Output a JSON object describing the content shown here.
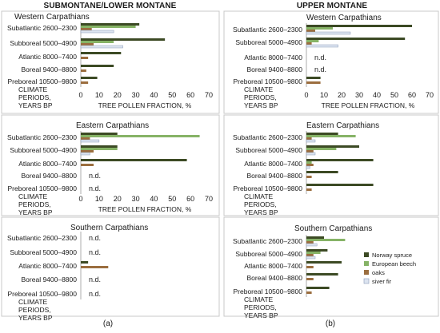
{
  "headings": {
    "left": "SUBMONTANE/LOWER MONTANE",
    "right": "UPPER MONTANE"
  },
  "column_labels": {
    "left": "(a)",
    "right": "(b)"
  },
  "axis_label": "TREE POLLEN FRACTION, %",
  "periods_label": [
    "CLIMATE",
    "PERIODS,",
    "YEARS BP"
  ],
  "nd_label": "n.d.",
  "periods": [
    "Subatlantic 2600–2300",
    "Subboreal 5000–4900",
    "Atlantic 8000–7400",
    "Boreal 9400–8800",
    "Preboreal 10500–9800"
  ],
  "colors": {
    "Norway spruce": "#3c4a24",
    "European beech": "#86b366",
    "oaks": "#9b6e3f",
    "siver fir": "#dce4f0"
  },
  "legend": [
    "Norway spruce",
    "European beech",
    "oaks",
    "siver fir"
  ],
  "chart_data": [
    {
      "type": "bar",
      "orientation": "horizontal",
      "title": "Western Carpathians",
      "column": "left",
      "xlim": [
        0,
        70
      ],
      "xticks": [
        0,
        10,
        20,
        30,
        40,
        50,
        60,
        70
      ],
      "categories": [
        "Subatlantic 2600–2300",
        "Subboreal 5000–4900",
        "Atlantic 8000–7400",
        "Boreal 9400–8800",
        "Preboreal 10500–9800"
      ],
      "series": [
        {
          "name": "Norway spruce",
          "values": [
            32,
            46,
            22,
            18,
            9
          ]
        },
        {
          "name": "European beech",
          "values": [
            30,
            18,
            0,
            0,
            0
          ]
        },
        {
          "name": "oaks",
          "values": [
            6,
            7,
            4,
            3,
            4
          ]
        },
        {
          "name": "siver fir",
          "values": [
            18,
            23,
            0,
            0,
            0
          ]
        }
      ],
      "nd": [
        false,
        false,
        false,
        false,
        false
      ]
    },
    {
      "type": "bar",
      "orientation": "horizontal",
      "title": "Eastern Carpathians",
      "column": "left",
      "xlim": [
        0,
        70
      ],
      "xticks": [
        0,
        10,
        20,
        30,
        40,
        50,
        60,
        70
      ],
      "categories": [
        "Subatlantic 2600–2300",
        "Subboreal 5000–4900",
        "Atlantic 8000–7400",
        "Boreal 9400–8800",
        "Preboreal 10500–9800"
      ],
      "series": [
        {
          "name": "Norway spruce",
          "values": [
            20,
            20,
            58,
            null,
            null
          ]
        },
        {
          "name": "European beech",
          "values": [
            65,
            20,
            0,
            null,
            null
          ]
        },
        {
          "name": "oaks",
          "values": [
            5,
            7,
            7,
            null,
            null
          ]
        },
        {
          "name": "siver fir",
          "values": [
            10,
            5,
            0,
            null,
            null
          ]
        }
      ],
      "nd": [
        false,
        false,
        false,
        true,
        true
      ]
    },
    {
      "type": "bar",
      "orientation": "horizontal",
      "title": "Southern Carpathians",
      "column": "left",
      "xlim": [
        0,
        70
      ],
      "xticks": [],
      "categories": [
        "Subatlantic 2600–2300",
        "Subboreal 5000–4900",
        "Atlantic 8000–7400",
        "Boreal 9400–8800",
        "Preboreal 10500–9800"
      ],
      "series": [
        {
          "name": "Norway spruce",
          "values": [
            null,
            null,
            4,
            null,
            null
          ]
        },
        {
          "name": "European beech",
          "values": [
            null,
            null,
            0,
            null,
            null
          ]
        },
        {
          "name": "oaks",
          "values": [
            null,
            null,
            15,
            null,
            null
          ]
        },
        {
          "name": "siver fir",
          "values": [
            null,
            null,
            0,
            null,
            null
          ]
        }
      ],
      "nd": [
        true,
        true,
        false,
        true,
        true
      ]
    },
    {
      "type": "bar",
      "orientation": "horizontal",
      "title": "Western Carpathians",
      "column": "right",
      "xlim": [
        0,
        70
      ],
      "xticks": [
        0,
        10,
        20,
        30,
        40,
        50,
        60,
        70
      ],
      "categories": [
        "Subatlantic 2600–2300",
        "Subboreal 5000–4900",
        "Atlantic 8000–7400",
        "Boreal 9400–8800",
        "Preboreal 10500–9800"
      ],
      "series": [
        {
          "name": "Norway spruce",
          "values": [
            60,
            56,
            null,
            null,
            8
          ]
        },
        {
          "name": "European beech",
          "values": [
            15,
            7,
            null,
            null,
            0
          ]
        },
        {
          "name": "oaks",
          "values": [
            5,
            3,
            null,
            null,
            8
          ]
        },
        {
          "name": "siver fir",
          "values": [
            25,
            18,
            null,
            null,
            0
          ]
        }
      ],
      "nd": [
        false,
        false,
        true,
        true,
        false
      ]
    },
    {
      "type": "bar",
      "orientation": "horizontal",
      "title": "Eastern Carpathians",
      "column": "right",
      "xlim": [
        0,
        70
      ],
      "xticks": [],
      "categories": [
        "Subatlantic 2600–2300",
        "Subboreal 5000–4900",
        "Atlantic 8000–7400",
        "Boreal 9400–8800",
        "Preboreal 10500–9800"
      ],
      "series": [
        {
          "name": "Norway spruce",
          "values": [
            18,
            30,
            38,
            18,
            38
          ]
        },
        {
          "name": "European beech",
          "values": [
            28,
            17,
            3,
            0,
            0
          ]
        },
        {
          "name": "oaks",
          "values": [
            3,
            4,
            4,
            3,
            3
          ]
        },
        {
          "name": "siver fir",
          "values": [
            5,
            5,
            2,
            0,
            0
          ]
        }
      ],
      "nd": [
        false,
        false,
        false,
        false,
        false
      ]
    },
    {
      "type": "bar",
      "orientation": "horizontal",
      "title": "Southern Carpathians",
      "column": "right",
      "xlim": [
        0,
        70
      ],
      "xticks": [],
      "categories": [
        "Subatlantic 2600–2300",
        "Subboreal 5000–4900",
        "Atlantic 8000–7400",
        "Boreal 9400–8800",
        "Preboreal 10500–9800"
      ],
      "series": [
        {
          "name": "Norway spruce",
          "values": [
            10,
            12,
            20,
            18,
            13
          ]
        },
        {
          "name": "European beech",
          "values": [
            22,
            8,
            0,
            0,
            0
          ]
        },
        {
          "name": "oaks",
          "values": [
            4,
            4,
            4,
            4,
            3
          ]
        },
        {
          "name": "siver fir",
          "values": [
            6,
            5,
            0,
            0,
            0
          ]
        }
      ],
      "nd": [
        false,
        false,
        false,
        false,
        false
      ]
    }
  ]
}
